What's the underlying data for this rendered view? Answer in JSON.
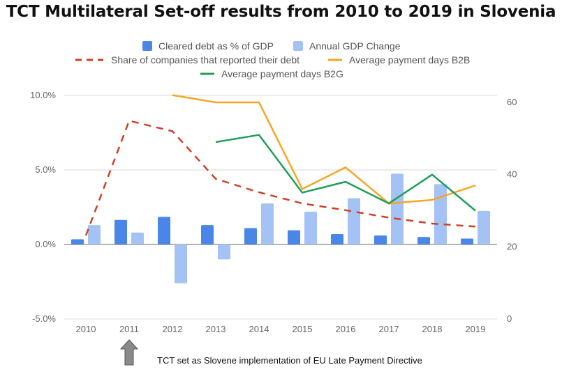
{
  "title": "TCT Multilateral Set-off results from 2010 to 2019 in Slovenia",
  "annotation": "TCT set as Slovene implementation of EU Late Payment Directive",
  "annotation_year": "2011",
  "colors": {
    "cleared_debt": "#4a86e8",
    "gdp_change": "#a4c2f4",
    "share_reported": "#cc4125",
    "b2b": "#f6a623",
    "b2g": "#1e9e5a",
    "grid": "#d9d9d9",
    "zero_line": "#999999",
    "arrow": "#8a8a8a"
  },
  "chart_data": {
    "type": "bar",
    "categories": [
      "2010",
      "2011",
      "2012",
      "2013",
      "2014",
      "2015",
      "2016",
      "2017",
      "2018",
      "2019"
    ],
    "left_axis": {
      "min": -5,
      "max": 10,
      "ticks": [
        10,
        5,
        0,
        -5
      ],
      "tick_labels": [
        "10.0%",
        "5.0%",
        "0.0%",
        "-5.0%"
      ]
    },
    "right_axis": {
      "min": 0,
      "max": 60,
      "ticks": [
        60,
        40,
        20,
        0
      ],
      "tick_labels": [
        "60",
        "40",
        "20",
        "0"
      ]
    },
    "grid": true,
    "legend_position": "top",
    "series": [
      {
        "name": "Cleared debt as % of GDP",
        "kind": "bar",
        "axis": "left",
        "values": [
          0.35,
          1.65,
          1.85,
          1.3,
          1.1,
          0.95,
          0.7,
          0.6,
          0.5,
          0.4
        ]
      },
      {
        "name": "Annual GDP Change",
        "kind": "bar",
        "axis": "left",
        "values": [
          1.3,
          0.8,
          -2.6,
          -1.0,
          2.75,
          2.2,
          3.1,
          4.75,
          4.05,
          2.25
        ]
      },
      {
        "name": "Share of companies that reported their debt",
        "kind": "dashed-line",
        "axis": "left",
        "values": [
          0.6,
          8.3,
          7.6,
          4.4,
          3.5,
          2.75,
          2.3,
          1.8,
          1.4,
          1.2
        ]
      },
      {
        "name": "Average payment days B2B",
        "kind": "line",
        "axis": "right",
        "values": [
          null,
          null,
          62,
          60,
          60,
          36,
          42,
          32,
          33,
          37
        ]
      },
      {
        "name": "Average payment days B2G",
        "kind": "line",
        "axis": "right",
        "values": [
          null,
          null,
          null,
          49,
          51,
          35,
          38,
          32,
          40,
          30
        ]
      }
    ]
  }
}
